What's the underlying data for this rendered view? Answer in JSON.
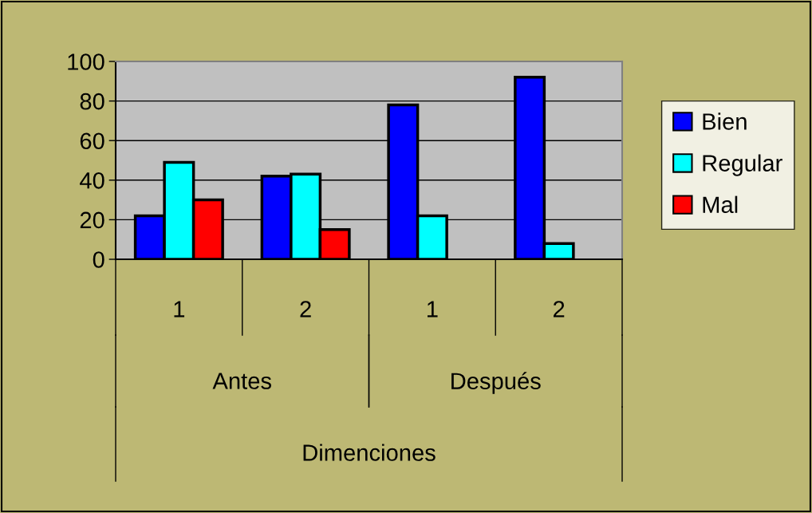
{
  "chart_data": {
    "type": "bar",
    "categories": [
      "1",
      "2",
      "1",
      "2"
    ],
    "annotations": [
      "Antes",
      "Después",
      "Dimenciones"
    ],
    "series": [
      {
        "name": "Bien",
        "color": "#0000ff",
        "values": [
          22,
          42,
          78,
          92
        ]
      },
      {
        "name": "Regular",
        "color": "#00ffff",
        "values": [
          49,
          43,
          22,
          8
        ]
      },
      {
        "name": "Mal",
        "color": "#ff0000",
        "values": [
          30,
          15,
          null,
          null
        ]
      }
    ],
    "ylim": [
      0,
      100
    ],
    "yticks": [
      0,
      20,
      40,
      60,
      80,
      100
    ],
    "grid": "y",
    "legend": "right"
  }
}
